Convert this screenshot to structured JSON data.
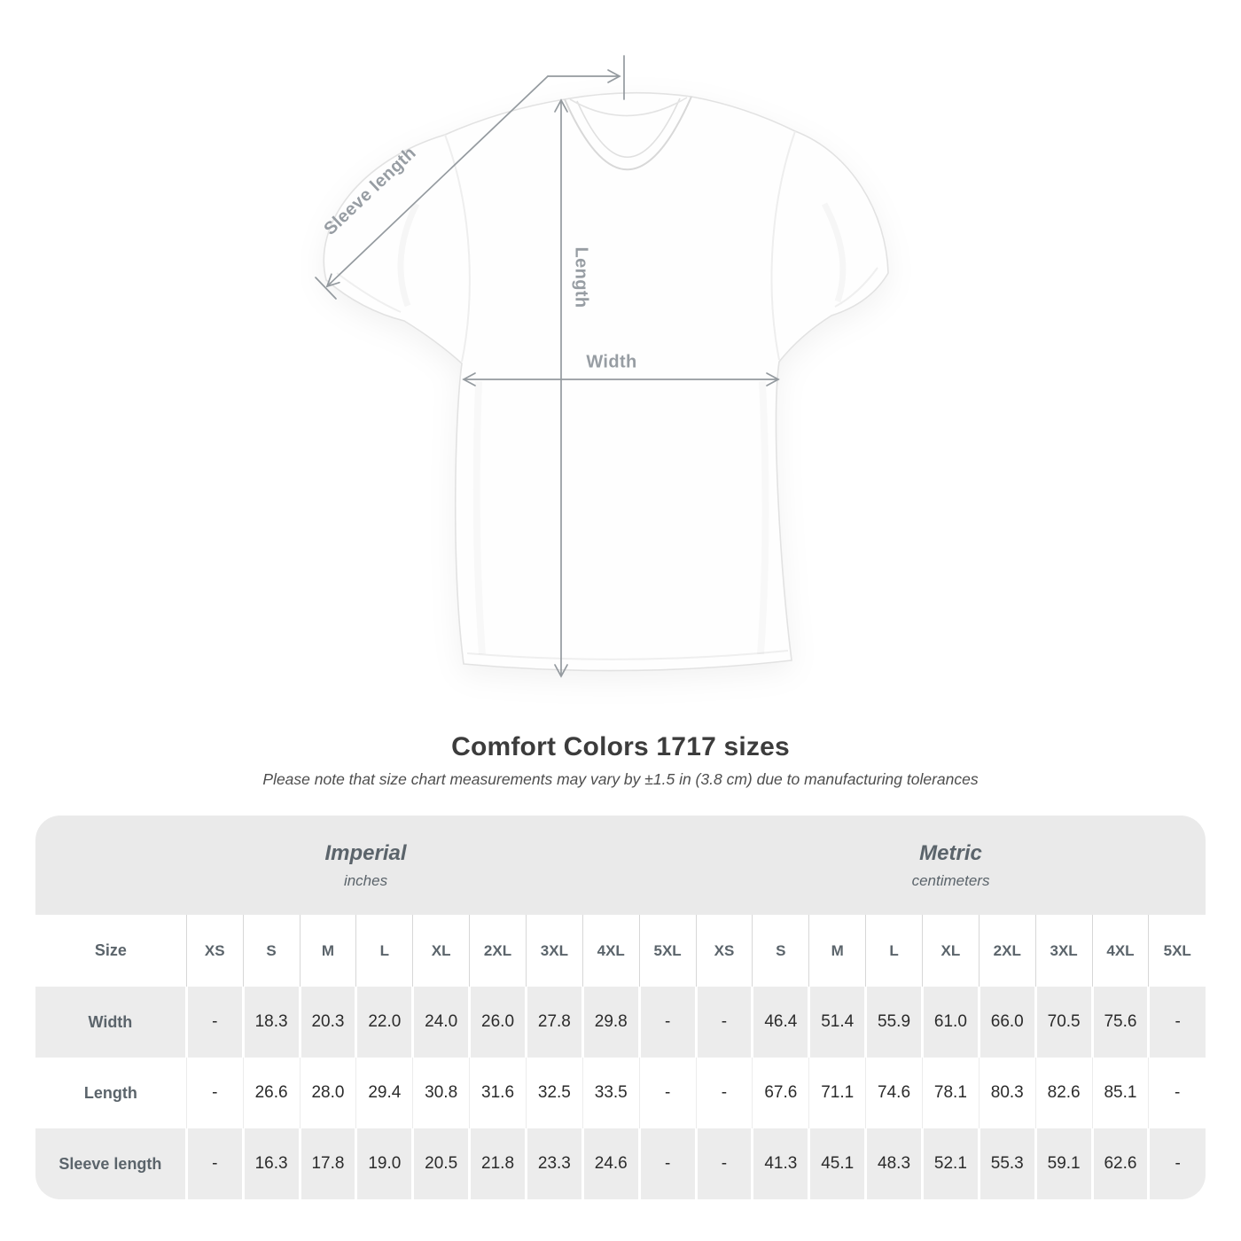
{
  "page": {
    "title": "Comfort Colors 1717 sizes",
    "note": "Please note that size chart measurements may vary by ±1.5 in (3.8 cm) due to manufacturing tolerances"
  },
  "diagram": {
    "sleeve_label": "Sleeve length",
    "length_label": "Length",
    "width_label": "Width"
  },
  "table": {
    "unit_groups": [
      {
        "label": "Imperial",
        "sublabel": "inches"
      },
      {
        "label": "Metric",
        "sublabel": "centimeters"
      }
    ],
    "size_header": "Size",
    "sizes": [
      "XS",
      "S",
      "M",
      "L",
      "XL",
      "2XL",
      "3XL",
      "4XL",
      "5XL"
    ],
    "rows": [
      {
        "label": "Width",
        "imperial": [
          "-",
          "18.3",
          "20.3",
          "22.0",
          "24.0",
          "26.0",
          "27.8",
          "29.8",
          "-"
        ],
        "metric": [
          "-",
          "46.4",
          "51.4",
          "55.9",
          "61.0",
          "66.0",
          "70.5",
          "75.6",
          "-"
        ]
      },
      {
        "label": "Length",
        "imperial": [
          "-",
          "26.6",
          "28.0",
          "29.4",
          "30.8",
          "31.6",
          "32.5",
          "33.5",
          "-"
        ],
        "metric": [
          "-",
          "67.6",
          "71.1",
          "74.6",
          "78.1",
          "80.3",
          "82.6",
          "85.1",
          "-"
        ]
      },
      {
        "label": "Sleeve length",
        "imperial": [
          "-",
          "16.3",
          "17.8",
          "19.0",
          "20.5",
          "21.8",
          "23.3",
          "24.6",
          "-"
        ],
        "metric": [
          "-",
          "41.3",
          "45.1",
          "48.3",
          "52.1",
          "55.3",
          "59.1",
          "62.6",
          "-"
        ]
      }
    ]
  },
  "colors": {
    "band_gray": "#eaeaea",
    "row_alt_gray": "#ececec",
    "header_text": "#5b646b",
    "value_text": "#2b2b2b",
    "diagram_label_gray": "#979da3",
    "diagram_line_gray": "#949a9f"
  }
}
